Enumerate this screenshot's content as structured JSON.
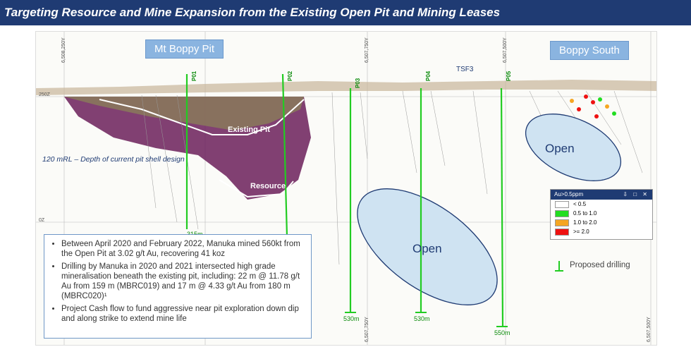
{
  "title": "Targeting Resource and Mine Expansion from the Existing Open Pit and Mining Leases",
  "callouts": {
    "left": "Mt Boppy Pit",
    "right": "Boppy South"
  },
  "labels": {
    "existing_pit": "Existing Pit",
    "resource": "Resource",
    "tsf3": "TSF3",
    "depth_note": "120 mRL – Depth of current pit shell design",
    "open_small": "Open",
    "open_large": "Open",
    "rl_250": "250Z",
    "rl_0": "0Z"
  },
  "grid_eastings": [
    "6,508,250Y",
    "6,507,750Y",
    "6,507,500Y",
    "6,507,750Y",
    "6,507,500Y"
  ],
  "holes": [
    {
      "name": "P01",
      "length": "315m"
    },
    {
      "name": "P02",
      "length": ""
    },
    {
      "name": "P03",
      "length": "530m"
    },
    {
      "name": "P04",
      "length": "530m"
    },
    {
      "name": "P05",
      "length": "550m"
    }
  ],
  "bullets": [
    "Between April 2020 and February 2022, Manuka mined 560kt from the Open Pit at 3.02 g/t Au, recovering 41 koz",
    "Drilling by Manuka in 2020 and 2021 intersected high grade mineralisation beneath the existing pit, including: 22 m @ 11.78 g/t Au from 159 m (MBRC019) and 17 m @ 4.33 g/t Au from 180 m (MBRC020)¹",
    "Project Cash flow to fund aggressive near pit exploration down dip and along strike to extend mine life"
  ],
  "legend": {
    "title": "Au>0.5ppm",
    "buttons": "⇩ □ ✕",
    "rows": [
      {
        "label": "< 0.5",
        "color": "#ffffff"
      },
      {
        "label": "0.5 to 1.0",
        "color": "#22dd22"
      },
      {
        "label": "1.0 to 2.0",
        "color": "#f5a623"
      },
      {
        "label": ">= 2.0",
        "color": "#ee1111"
      }
    ]
  },
  "proposed_drilling": "Proposed drilling",
  "colors": {
    "title_bg": "#1f3b73",
    "open_fill": "#cfe3f2",
    "hole_green": "#22cc22"
  }
}
